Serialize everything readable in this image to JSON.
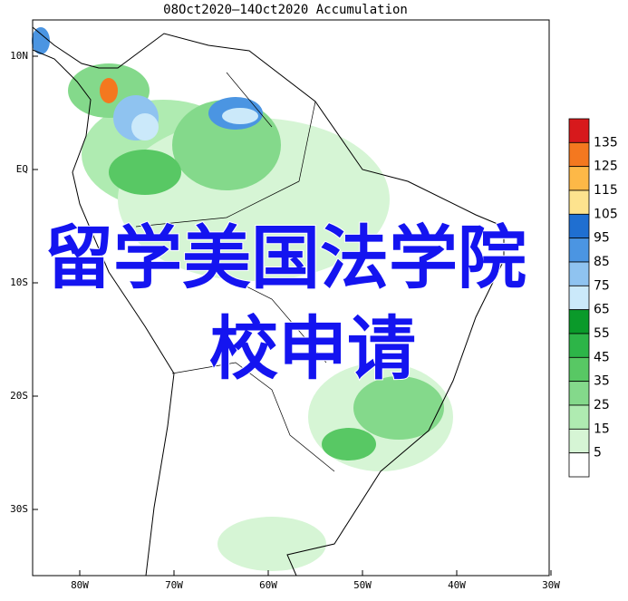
{
  "title": "08Oct2020—14Oct2020 Accumulation",
  "lat_labels": [
    "10N",
    "EQ",
    "10S",
    "20S",
    "30S"
  ],
  "lon_labels": [
    "80W",
    "70W",
    "60W",
    "50W",
    "40W",
    "30W"
  ],
  "colorbar": {
    "labels": [
      135,
      125,
      115,
      105,
      95,
      85,
      75,
      65,
      55,
      45,
      35,
      25,
      15,
      5
    ],
    "colors": [
      "#d7191c",
      "#f4781f",
      "#fdb847",
      "#fde38e",
      "#1f6fd1",
      "#4b95e2",
      "#8fc3f0",
      "#cbe9fa",
      "#0a9a2a",
      "#2db548",
      "#58c864",
      "#84d98b",
      "#afebb1",
      "#d6f5d5",
      "#ffffff"
    ]
  },
  "overlay": {
    "line1": "留学美国法学院",
    "line2": "校申请"
  }
}
